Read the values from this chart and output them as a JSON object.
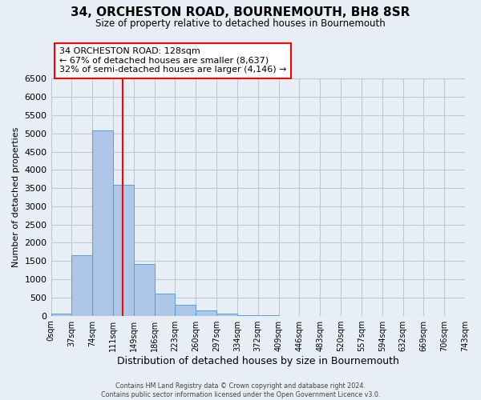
{
  "title": "34, ORCHESTON ROAD, BOURNEMOUTH, BH8 8SR",
  "subtitle": "Size of property relative to detached houses in Bournemouth",
  "xlabel": "Distribution of detached houses by size in Bournemouth",
  "ylabel": "Number of detached properties",
  "footer_lines": [
    "Contains HM Land Registry data © Crown copyright and database right 2024.",
    "Contains public sector information licensed under the Open Government Licence v3.0."
  ],
  "bin_edges": [
    0,
    37,
    74,
    111,
    148,
    185,
    222,
    259,
    296,
    333,
    370,
    407,
    444,
    481,
    518,
    555,
    592,
    629,
    666,
    703,
    740
  ],
  "bin_labels": [
    "0sqm",
    "37sqm",
    "74sqm",
    "111sqm",
    "149sqm",
    "186sqm",
    "223sqm",
    "260sqm",
    "297sqm",
    "334sqm",
    "372sqm",
    "409sqm",
    "446sqm",
    "483sqm",
    "520sqm",
    "557sqm",
    "594sqm",
    "632sqm",
    "669sqm",
    "706sqm",
    "743sqm"
  ],
  "bar_heights": [
    50,
    1650,
    5080,
    3600,
    1420,
    610,
    295,
    155,
    60,
    10,
    5,
    0,
    0,
    0,
    0,
    0,
    0,
    0,
    0,
    0
  ],
  "bar_color": "#aec6e8",
  "bar_edge_color": "#5a9fd4",
  "vline_x": 128,
  "vline_color": "red",
  "ylim": [
    0,
    6500
  ],
  "yticks": [
    0,
    500,
    1000,
    1500,
    2000,
    2500,
    3000,
    3500,
    4000,
    4500,
    5000,
    5500,
    6000,
    6500
  ],
  "annotation_line1": "34 ORCHESTON ROAD: 128sqm",
  "annotation_line2": "← 67% of detached houses are smaller (8,637)",
  "annotation_line3": "32% of semi-detached houses are larger (4,146) →",
  "annotation_box_color": "white",
  "annotation_box_edgecolor": "red",
  "grid_color": "#c0c8d8",
  "background_color": "#e8eef5",
  "xlim": [
    0,
    740
  ]
}
